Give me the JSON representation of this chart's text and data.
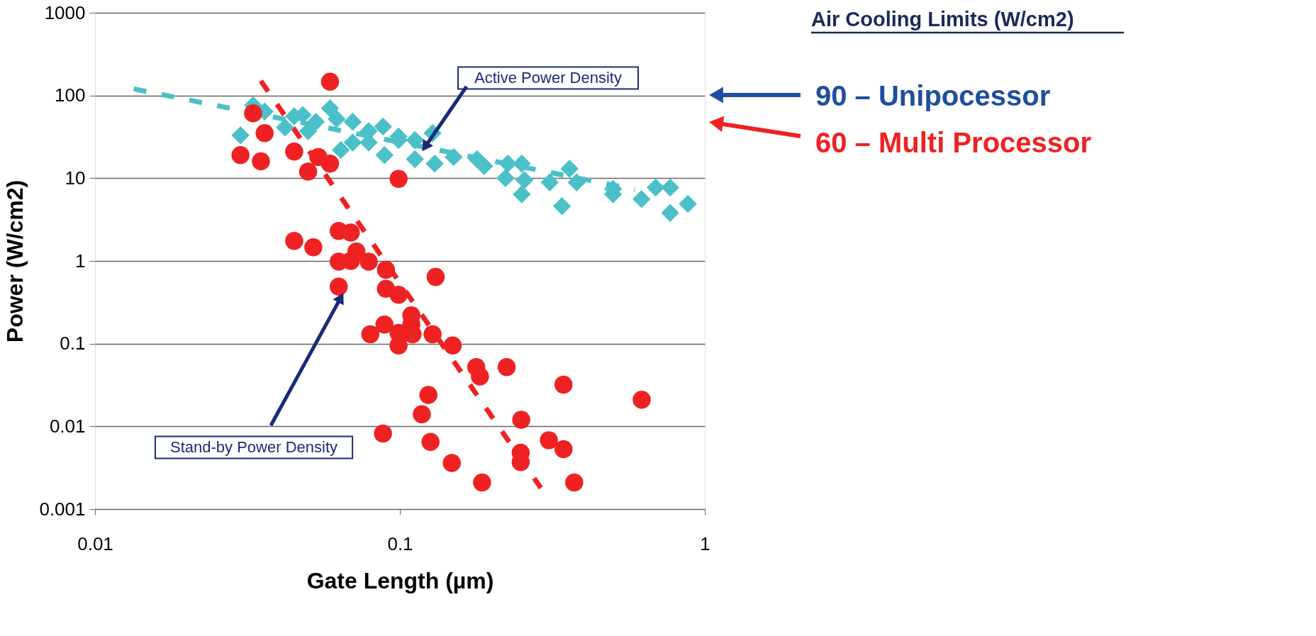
{
  "chart_data": {
    "type": "scatter",
    "xlabel": "Gate Length (µm)",
    "ylabel": "Power (W/cm2)",
    "log": "xy",
    "grid": "y",
    "xlim": [
      0.01,
      1
    ],
    "xticks": [
      0.01,
      0.1,
      1
    ],
    "ylim": [
      0.001,
      1000
    ],
    "yticks": [
      0.001,
      0.01,
      0.1,
      1,
      10,
      100,
      1000
    ],
    "series": [
      {
        "marker": "diamond",
        "color": "#4bc0c8",
        "x": [
          0.033,
          0.036,
          0.03,
          0.045,
          0.048,
          0.042,
          0.05,
          0.053,
          0.059,
          0.062,
          0.064,
          0.07,
          0.07,
          0.079,
          0.079,
          0.088,
          0.089,
          0.099,
          0.099,
          0.112,
          0.112,
          0.128,
          0.13,
          0.15,
          0.179,
          0.189,
          0.226,
          0.251,
          0.222,
          0.256,
          0.251,
          0.31,
          0.36,
          0.38,
          0.34,
          0.5,
          0.5,
          0.62,
          0.69,
          0.77,
          0.77,
          0.88
        ],
        "values": [
          76,
          64,
          33,
          56,
          58,
          41,
          37,
          48,
          70,
          52,
          22,
          48,
          27,
          37,
          27,
          42,
          19,
          32,
          29,
          29,
          17,
          35,
          15,
          18,
          17,
          14,
          15,
          15,
          10,
          9.5,
          6.4,
          8.9,
          13,
          8.9,
          4.6,
          7.4,
          6.4,
          5.6,
          7.7,
          7.7,
          3.8,
          4.9
        ]
      },
      {
        "marker": "circle",
        "color": "#ee2222",
        "x": [
          0.059,
          0.033,
          0.036,
          0.03,
          0.035,
          0.045,
          0.05,
          0.054,
          0.059,
          0.099,
          0.045,
          0.052,
          0.063,
          0.069,
          0.063,
          0.069,
          0.072,
          0.079,
          0.09,
          0.063,
          0.09,
          0.099,
          0.109,
          0.109,
          0.131,
          0.08,
          0.089,
          0.099,
          0.099,
          0.11,
          0.128,
          0.149,
          0.178,
          0.183,
          0.224,
          0.124,
          0.118,
          0.126,
          0.088,
          0.148,
          0.186,
          0.25,
          0.249,
          0.249,
          0.308,
          0.344,
          0.344,
          0.373,
          0.621
        ],
        "values": [
          147,
          61,
          35,
          19,
          16,
          21,
          12,
          18,
          15,
          9.8,
          1.75,
          1.46,
          2.3,
          2.2,
          0.98,
          1.0,
          1.3,
          0.98,
          0.78,
          0.49,
          0.46,
          0.39,
          0.22,
          0.17,
          0.64,
          0.13,
          0.17,
          0.135,
          0.095,
          0.13,
          0.13,
          0.095,
          0.052,
          0.04,
          0.052,
          0.024,
          0.014,
          0.0065,
          0.0082,
          0.0036,
          0.0021,
          0.012,
          0.0048,
          0.0037,
          0.0068,
          0.0053,
          0.032,
          0.0021,
          0.021
        ]
      },
      {
        "type": "line",
        "line_style": "dashed",
        "color": "#4bc0c8",
        "x": [
          0.0134,
          0.59
        ],
        "values": [
          120,
          7.3
        ]
      },
      {
        "type": "line",
        "line_style": "dashed",
        "color": "#ee2222",
        "x": [
          0.035,
          0.29
        ],
        "values": [
          150,
          0.0018
        ]
      }
    ],
    "annotations": [
      {
        "text": "Active Power Density",
        "x": 0.121,
        "y": 24
      },
      {
        "text": "Stand-by Power Density",
        "x": 0.064,
        "y": 0.36
      },
      "Air Cooling Limits (W/cm2)",
      "90 – Unipocessor",
      "60 – Multi Processor"
    ]
  }
}
